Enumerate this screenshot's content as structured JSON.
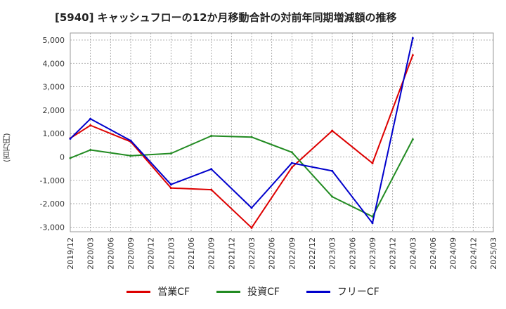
{
  "chart_data": {
    "type": "line",
    "title": "[5940]  キャッシュフローの12か月移動合計の対前年同期増減額の推移",
    "ylabel": "(百万円)",
    "ylim": [
      -3200,
      5300
    ],
    "yticks": [
      5000,
      4000,
      3000,
      2000,
      1000,
      0,
      -1000,
      -2000,
      -3000
    ],
    "ytick_labels": [
      "5,000",
      "4,000",
      "3,000",
      "2,000",
      "1,000",
      "0",
      "-1,000",
      "-2,000",
      "-3,000"
    ],
    "categories": [
      "2019/12",
      "2020/03",
      "2020/06",
      "2020/09",
      "2020/12",
      "2021/03",
      "2021/06",
      "2021/09",
      "2021/12",
      "2022/03",
      "2022/06",
      "2022/09",
      "2022/12",
      "2023/03",
      "2023/06",
      "2023/09",
      "2023/12",
      "2024/03",
      "2024/06",
      "2024/09",
      "2024/12",
      "2025/03"
    ],
    "grid": true,
    "legend_position": "bottom",
    "series": [
      {
        "name": "営業CF",
        "color": "#dd0000",
        "values": [
          800,
          1350,
          null,
          650,
          null,
          -1330,
          null,
          -1400,
          null,
          -3030,
          null,
          -450,
          null,
          1120,
          null,
          -270,
          null,
          4350,
          null,
          null,
          null,
          null
        ]
      },
      {
        "name": "投資CF",
        "color": "#228b22",
        "values": [
          -50,
          300,
          null,
          50,
          null,
          150,
          null,
          900,
          null,
          850,
          null,
          200,
          null,
          -1700,
          null,
          -2550,
          null,
          750,
          null,
          null,
          null,
          null
        ]
      },
      {
        "name": "フリーCF",
        "color": "#0000cc",
        "values": [
          780,
          1630,
          null,
          700,
          null,
          -1180,
          null,
          -520,
          null,
          -2180,
          null,
          -260,
          null,
          -600,
          null,
          -2830,
          null,
          5080,
          null,
          null,
          null,
          null
        ]
      }
    ]
  }
}
